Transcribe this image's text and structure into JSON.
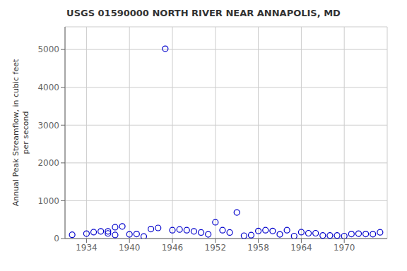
{
  "chart_data": {
    "type": "scatter",
    "title": "USGS 01590000 NORTH RIVER NEAR ANNAPOLIS, MD",
    "ylabel": "Annual Peak Streamflow, in cubic feet\nper second",
    "x": [
      1932,
      1934,
      1935,
      1936,
      1937,
      1937,
      1938,
      1938,
      1939,
      1940,
      1941,
      1942,
      1943,
      1944,
      1945,
      1946,
      1947,
      1948,
      1949,
      1950,
      1951,
      1952,
      1953,
      1954,
      1955,
      1956,
      1957,
      1958,
      1959,
      1960,
      1961,
      1962,
      1963,
      1964,
      1965,
      1966,
      1967,
      1968,
      1969,
      1970,
      1971,
      1972,
      1973,
      1974,
      1975
    ],
    "values": [
      100,
      130,
      170,
      190,
      190,
      135,
      95,
      300,
      320,
      110,
      120,
      55,
      250,
      280,
      5020,
      220,
      240,
      220,
      190,
      160,
      110,
      430,
      220,
      160,
      690,
      75,
      90,
      200,
      220,
      200,
      110,
      220,
      65,
      170,
      140,
      140,
      80,
      80,
      80,
      65,
      120,
      130,
      120,
      115,
      165
    ],
    "color": "#0000cc",
    "marker": "circle",
    "xlim": [
      1931,
      1976
    ],
    "xticks": [
      1934,
      1940,
      1946,
      1952,
      1958,
      1964,
      1970
    ],
    "ylim": [
      0,
      5600
    ],
    "yticks": [
      0,
      1000,
      2000,
      3000,
      4000,
      5000
    ],
    "grid": true
  }
}
